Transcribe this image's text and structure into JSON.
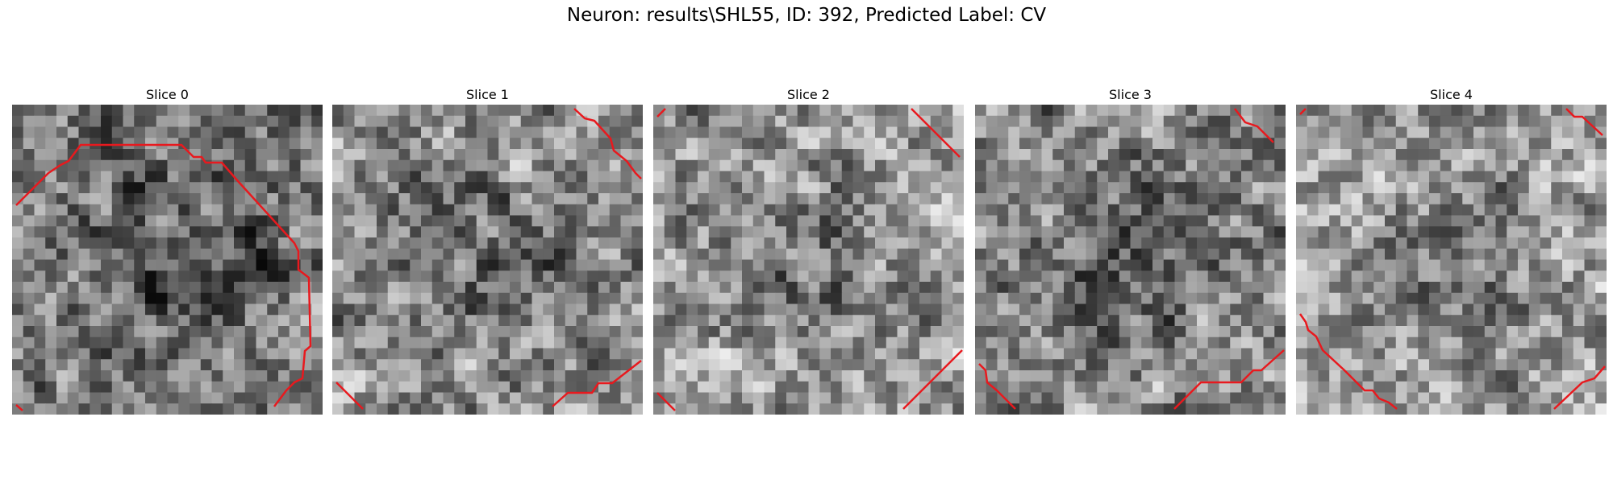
{
  "suptitle": "Neuron: results\\SHL55, ID: 392, Predicted Label: CV",
  "image": {
    "colormap": "gray",
    "contour_color": "#e8191e",
    "grid_cells": 28
  },
  "panels": [
    {
      "title": "Slice 0",
      "seed": 11,
      "bias": -0.08
    },
    {
      "title": "Slice 1",
      "seed": 23,
      "bias": 0.02
    },
    {
      "title": "Slice 2",
      "seed": 37,
      "bias": 0.06
    },
    {
      "title": "Slice 3",
      "seed": 41,
      "bias": -0.02
    },
    {
      "title": "Slice 4",
      "seed": 53,
      "bias": 0.08
    }
  ]
}
